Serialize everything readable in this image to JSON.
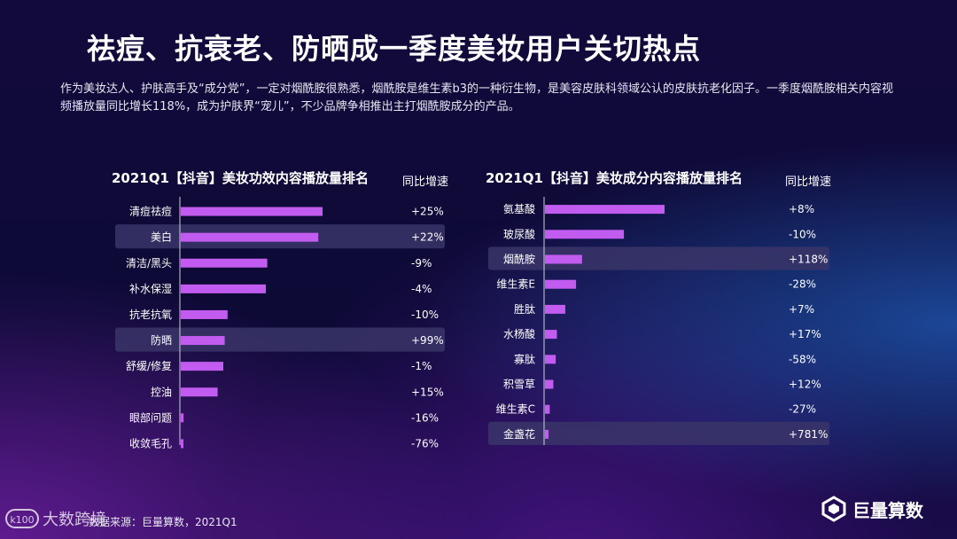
{
  "title": "祛痘、抗衰老、防晒成一季度美妆用户关切热点",
  "description": "作为美妆达人、护肤高手及“成分党”，一定对烟酰胺很熟悉，烟酰胺是维生素b3的一种衍生物，是美容皮肤科领域公认的皮肤抗老化因子。一季度烟酰胺相关内容视频播放量同比增长118%，成为护肤界“宠儿”，不少品牌争相推出主打烟酰胺成分的产品。",
  "footer": {
    "source": "数据来源：巨量算数，2021Q1",
    "watermark": "大数跨境",
    "brand": "巨量算数"
  },
  "colors": {
    "bar": "#c25cf0",
    "highlight": "#3a3569",
    "axis": "#cfcfe0"
  },
  "chart_data": [
    {
      "type": "bar",
      "orientation": "horizontal",
      "title": "2021Q1【抖音】美妆功效内容播放量排名",
      "growth_header": "同比增速",
      "categories": [
        "清痘祛痘",
        "美白",
        "清洁/黑头",
        "补水保湿",
        "抗老抗氧",
        "防晒",
        "舒缓/修复",
        "控油",
        "眼部问题",
        "收敛毛孔"
      ],
      "values": [
        100,
        97,
        61,
        60,
        33,
        31,
        30,
        26,
        2,
        0.5
      ],
      "growth": [
        "+25%",
        "+22%",
        "-9%",
        "-4%",
        "-10%",
        "+99%",
        "-1%",
        "+15%",
        "-16%",
        "-76%"
      ],
      "highlighted": [
        "美白",
        "防晒"
      ]
    },
    {
      "type": "bar",
      "orientation": "horizontal",
      "title": "2021Q1【抖音】美妆成分内容播放量排名",
      "growth_header": "同比增速",
      "categories": [
        "氨基酸",
        "玻尿酸",
        "烟酰胺",
        "维生素E",
        "胜肽",
        "水杨酸",
        "寡肽",
        "积雪草",
        "维生素C",
        "金盏花"
      ],
      "values": [
        100,
        66,
        31,
        26,
        17,
        10,
        9,
        7,
        4,
        3
      ],
      "growth": [
        "+8%",
        "-10%",
        "+118%",
        "-28%",
        "+7%",
        "+17%",
        "-58%",
        "+12%",
        "-27%",
        "+781%"
      ],
      "highlighted": [
        "烟酰胺",
        "金盏花"
      ]
    }
  ]
}
